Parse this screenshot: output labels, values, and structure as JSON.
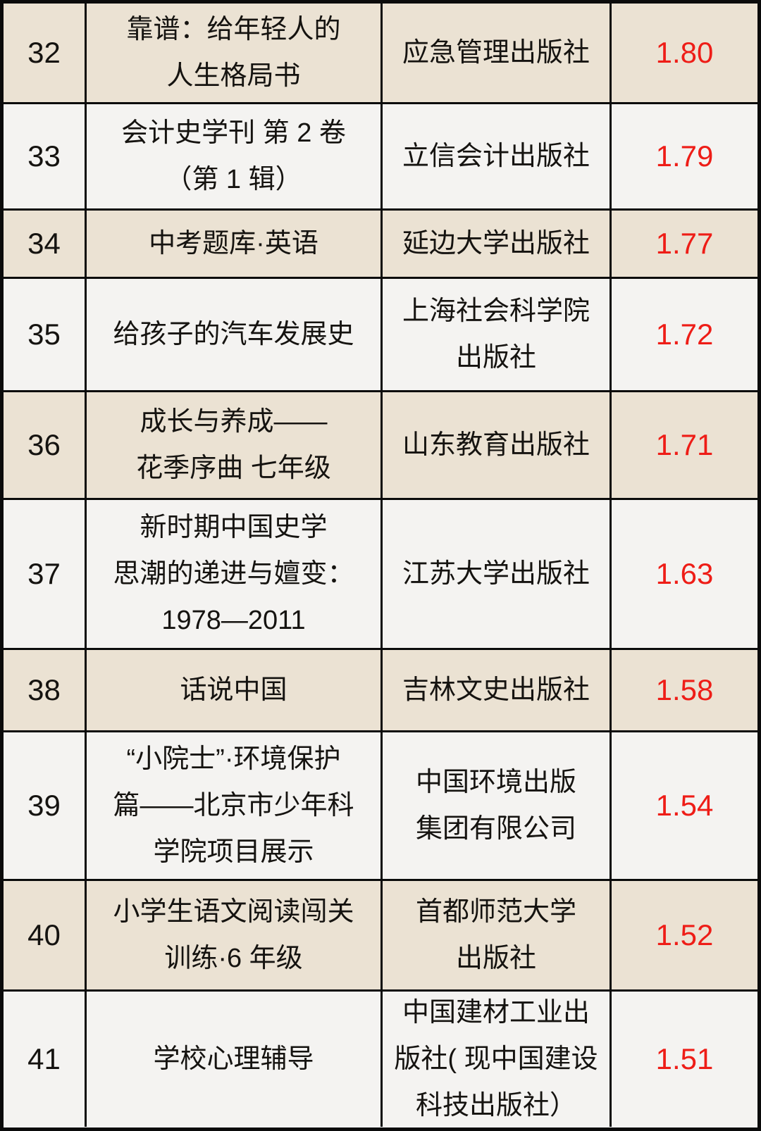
{
  "colors": {
    "row_shade_beige": "#ebe2d3",
    "row_shade_white": "#f4f3f1",
    "border_black": "#0b0b0b",
    "index_red": "#ee1d17",
    "text_black": "#151310"
  },
  "table": {
    "column_semantics": [
      "rank",
      "book_title",
      "publisher",
      "index_value"
    ],
    "rows": [
      {
        "rank": "32",
        "title_lines": [
          "靠谱：给年轻人的",
          "人生格局书"
        ],
        "publisher_lines": [
          "应急管理出版社"
        ],
        "index": "1.80",
        "shade": "beige"
      },
      {
        "rank": "33",
        "title_lines": [
          "会计史学刊 第 2 卷",
          "（第 1 辑）"
        ],
        "publisher_lines": [
          "立信会计出版社"
        ],
        "index": "1.79",
        "shade": "white"
      },
      {
        "rank": "34",
        "title_lines": [
          "中考题库·英语"
        ],
        "publisher_lines": [
          "延边大学出版社"
        ],
        "index": "1.77",
        "shade": "beige"
      },
      {
        "rank": "35",
        "title_lines": [
          "给孩子的汽车发展史"
        ],
        "publisher_lines": [
          "上海社会科学院",
          "出版社"
        ],
        "index": "1.72",
        "shade": "white"
      },
      {
        "rank": "36",
        "title_lines": [
          "成长与养成——",
          "花季序曲 七年级"
        ],
        "publisher_lines": [
          "山东教育出版社"
        ],
        "index": "1.71",
        "shade": "beige"
      },
      {
        "rank": "37",
        "title_lines": [
          "新时期中国史学",
          "思潮的递进与嬗变：",
          "1978—2011"
        ],
        "publisher_lines": [
          "江苏大学出版社"
        ],
        "index": "1.63",
        "shade": "white"
      },
      {
        "rank": "38",
        "title_lines": [
          "话说中国"
        ],
        "publisher_lines": [
          "吉林文史出版社"
        ],
        "index": "1.58",
        "shade": "beige"
      },
      {
        "rank": "39",
        "title_lines": [
          "“小院士”·环境保护",
          "篇——北京市少年科",
          "学院项目展示"
        ],
        "publisher_lines": [
          "中国环境出版",
          "集团有限公司"
        ],
        "index": "1.54",
        "shade": "white"
      },
      {
        "rank": "40",
        "title_lines": [
          "小学生语文阅读闯关",
          "训练·6 年级"
        ],
        "publisher_lines": [
          "首都师范大学",
          "出版社"
        ],
        "index": "1.52",
        "shade": "beige"
      },
      {
        "rank": "41",
        "title_lines": [
          "学校心理辅导"
        ],
        "publisher_lines": [
          "中国建材工业出",
          "版社( 现中国建设",
          "科技出版社）"
        ],
        "index": "1.51",
        "shade": "white"
      }
    ]
  }
}
